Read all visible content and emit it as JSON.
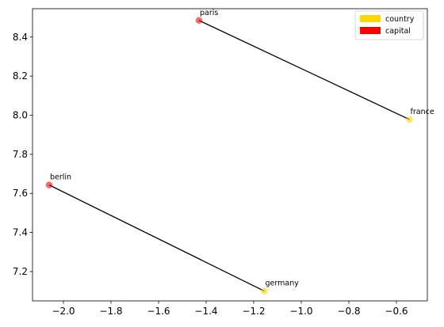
{
  "chart_data": {
    "type": "scatter",
    "title": "",
    "xlabel": "",
    "ylabel": "",
    "xlim": [
      -2.13,
      -0.47
    ],
    "ylim": [
      7.05,
      8.545
    ],
    "x_ticks": [
      -2.0,
      -1.8,
      -1.6,
      -1.4,
      -1.2,
      -1.0,
      -0.8,
      -0.6
    ],
    "y_ticks": [
      7.2,
      7.4,
      7.6,
      7.8,
      8.0,
      8.2,
      8.4
    ],
    "x_tick_labels": [
      "−2.0",
      "−1.8",
      "−1.6",
      "−1.4",
      "−1.2",
      "−1.0",
      "−0.8",
      "−0.6"
    ],
    "y_tick_labels": [
      "7.2",
      "7.4",
      "7.6",
      "7.8",
      "8.0",
      "8.2",
      "8.4"
    ],
    "grid": false,
    "points": [
      {
        "label": "paris",
        "x": -1.43,
        "y": 8.485,
        "group": "capital"
      },
      {
        "label": "france",
        "x": -0.545,
        "y": 7.978,
        "group": "country"
      },
      {
        "label": "berlin",
        "x": -2.06,
        "y": 7.643,
        "group": "capital"
      },
      {
        "label": "germany",
        "x": -1.155,
        "y": 7.1,
        "group": "country"
      }
    ],
    "connections": [
      {
        "from": "paris",
        "to": "france"
      },
      {
        "from": "berlin",
        "to": "germany"
      }
    ],
    "legend": {
      "position": "top-right",
      "entries": [
        {
          "label": "country",
          "color": "#FFD700"
        },
        {
          "label": "capital",
          "color": "#FF0000"
        }
      ]
    },
    "colors": {
      "capital": "#FF0000",
      "country": "#FFD700",
      "line": "#000000"
    }
  }
}
